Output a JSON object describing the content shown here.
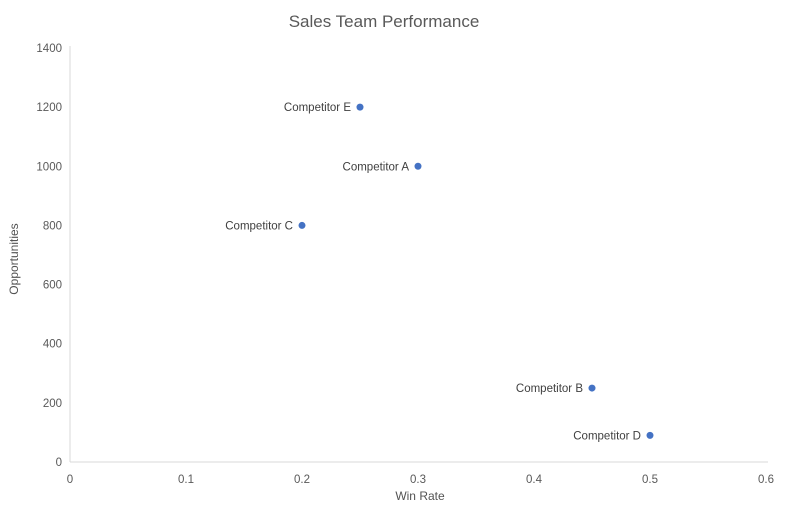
{
  "chart_data": {
    "type": "scatter",
    "title": "Sales Team Performance",
    "xlabel": "Win Rate",
    "ylabel": "Opportunities",
    "xlim": [
      0,
      0.6
    ],
    "ylim": [
      0,
      1400
    ],
    "x_ticks": [
      0,
      0.1,
      0.2,
      0.3,
      0.4,
      0.5,
      0.6
    ],
    "x_tick_labels": [
      "0",
      "0.1",
      "0.2",
      "0.3",
      "0.4",
      "0.5",
      "0.6"
    ],
    "y_ticks": [
      0,
      200,
      400,
      600,
      800,
      1000,
      1200,
      1400
    ],
    "y_tick_labels": [
      "0",
      "200",
      "400",
      "600",
      "800",
      "1000",
      "1200",
      "1400"
    ],
    "grid": false,
    "legend": "none",
    "label_position": "left-of-point",
    "marker_color": "#4472C4",
    "axis_line_color": "#D9D9D9",
    "tick_text_color": "#595959",
    "point_label_color": "#404040",
    "title_color": "#595959",
    "points": [
      {
        "label": "Competitor E",
        "x": 0.25,
        "y": 1200
      },
      {
        "label": "Competitor A",
        "x": 0.3,
        "y": 1000
      },
      {
        "label": "Competitor C",
        "x": 0.2,
        "y": 800
      },
      {
        "label": "Competitor B",
        "x": 0.45,
        "y": 250
      },
      {
        "label": "Competitor D",
        "x": 0.5,
        "y": 90
      }
    ]
  }
}
